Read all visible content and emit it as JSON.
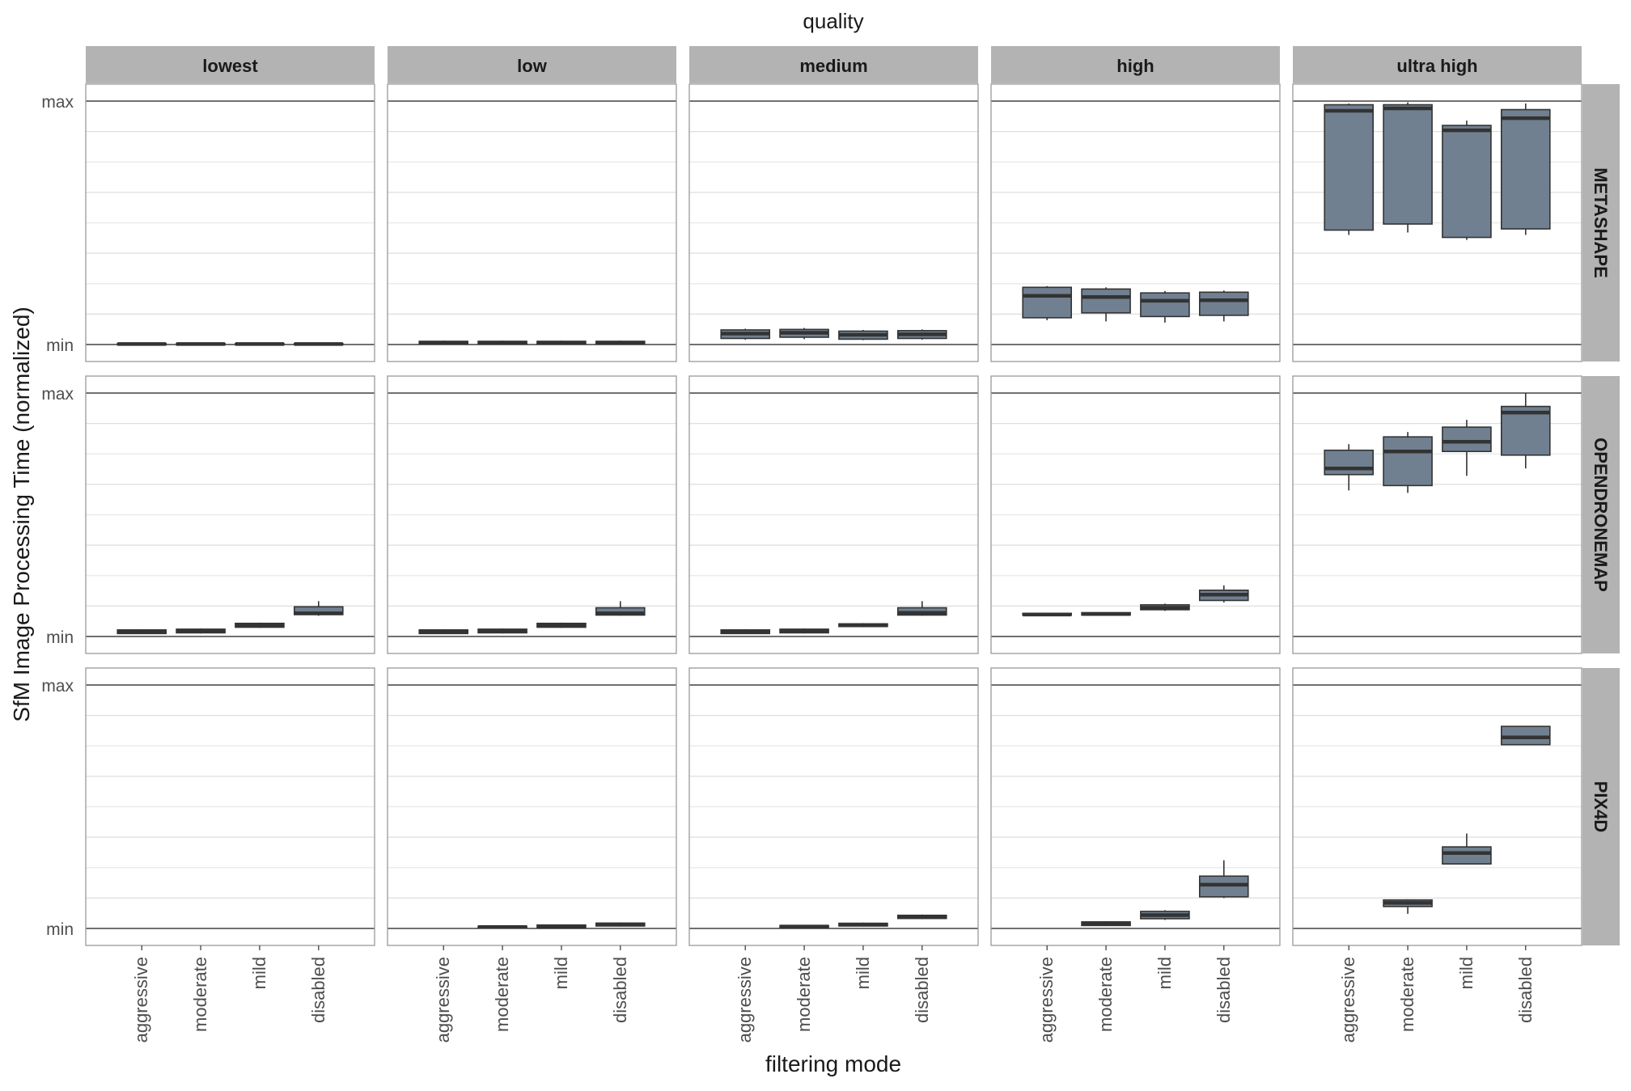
{
  "chart_data": {
    "type": "boxplot",
    "title": "quality",
    "xlabel": "filtering mode",
    "ylabel": "SfM Image Processing Time (normalized)",
    "y_tick_labels": [
      "min",
      "max"
    ],
    "ylim": [
      0,
      1
    ],
    "grid": true,
    "columns": [
      "lowest",
      "low",
      "medium",
      "high",
      "ultra high"
    ],
    "rows": [
      "METASHAPE",
      "OPENDRONEMAP",
      "PIX4D"
    ],
    "categories": [
      "aggressive",
      "moderate",
      "mild",
      "disabled"
    ],
    "colors": {
      "box_fill": "#708090",
      "strip_fill": "#b3b3b3",
      "panel_border": "#999999"
    },
    "panels": [
      {
        "row": "METASHAPE",
        "col": "lowest",
        "boxes": [
          {
            "category": "aggressive",
            "min": 0.0,
            "q1": 0.0,
            "median": 0.002,
            "q3": 0.004,
            "max": 0.006
          },
          {
            "category": "moderate",
            "min": 0.0,
            "q1": 0.0,
            "median": 0.002,
            "q3": 0.004,
            "max": 0.006
          },
          {
            "category": "mild",
            "min": 0.0,
            "q1": 0.0,
            "median": 0.002,
            "q3": 0.004,
            "max": 0.006
          },
          {
            "category": "disabled",
            "min": 0.0,
            "q1": 0.0,
            "median": 0.002,
            "q3": 0.004,
            "max": 0.006
          }
        ]
      },
      {
        "row": "METASHAPE",
        "col": "low",
        "boxes": [
          {
            "category": "aggressive",
            "min": 0.002,
            "q1": 0.003,
            "median": 0.008,
            "q3": 0.013,
            "max": 0.016
          },
          {
            "category": "moderate",
            "min": 0.002,
            "q1": 0.003,
            "median": 0.008,
            "q3": 0.013,
            "max": 0.016
          },
          {
            "category": "mild",
            "min": 0.002,
            "q1": 0.003,
            "median": 0.008,
            "q3": 0.013,
            "max": 0.016
          },
          {
            "category": "disabled",
            "min": 0.002,
            "q1": 0.003,
            "median": 0.008,
            "q3": 0.013,
            "max": 0.016
          }
        ]
      },
      {
        "row": "METASHAPE",
        "col": "medium",
        "boxes": [
          {
            "category": "aggressive",
            "min": 0.02,
            "q1": 0.025,
            "median": 0.045,
            "q3": 0.06,
            "max": 0.065
          },
          {
            "category": "moderate",
            "min": 0.022,
            "q1": 0.03,
            "median": 0.048,
            "q3": 0.062,
            "max": 0.068
          },
          {
            "category": "mild",
            "min": 0.018,
            "q1": 0.022,
            "median": 0.04,
            "q3": 0.055,
            "max": 0.06
          },
          {
            "category": "disabled",
            "min": 0.02,
            "q1": 0.025,
            "median": 0.042,
            "q3": 0.057,
            "max": 0.062
          }
        ]
      },
      {
        "row": "METASHAPE",
        "col": "high",
        "boxes": [
          {
            "category": "aggressive",
            "min": 0.1,
            "q1": 0.11,
            "median": 0.2,
            "q3": 0.235,
            "max": 0.24
          },
          {
            "category": "moderate",
            "min": 0.095,
            "q1": 0.13,
            "median": 0.195,
            "q3": 0.228,
            "max": 0.235
          },
          {
            "category": "mild",
            "min": 0.09,
            "q1": 0.115,
            "median": 0.18,
            "q3": 0.212,
            "max": 0.22
          },
          {
            "category": "disabled",
            "min": 0.095,
            "q1": 0.12,
            "median": 0.182,
            "q3": 0.215,
            "max": 0.222
          }
        ]
      },
      {
        "row": "METASHAPE",
        "col": "ultra high",
        "boxes": [
          {
            "category": "aggressive",
            "min": 0.45,
            "q1": 0.47,
            "median": 0.96,
            "q3": 0.985,
            "max": 0.99
          },
          {
            "category": "moderate",
            "min": 0.46,
            "q1": 0.495,
            "median": 0.97,
            "q3": 0.985,
            "max": 0.995
          },
          {
            "category": "mild",
            "min": 0.43,
            "q1": 0.44,
            "median": 0.88,
            "q3": 0.9,
            "max": 0.92
          },
          {
            "category": "disabled",
            "min": 0.45,
            "q1": 0.475,
            "median": 0.93,
            "q3": 0.965,
            "max": 0.99
          }
        ]
      },
      {
        "row": "OPENDRONEMAP",
        "col": "lowest",
        "boxes": [
          {
            "category": "aggressive",
            "min": 0.01,
            "q1": 0.012,
            "median": 0.02,
            "q3": 0.027,
            "max": 0.03
          },
          {
            "category": "moderate",
            "min": 0.012,
            "q1": 0.015,
            "median": 0.024,
            "q3": 0.03,
            "max": 0.033
          },
          {
            "category": "mild",
            "min": 0.035,
            "q1": 0.038,
            "median": 0.047,
            "q3": 0.054,
            "max": 0.057
          },
          {
            "category": "disabled",
            "min": 0.085,
            "q1": 0.09,
            "median": 0.095,
            "q3": 0.122,
            "max": 0.145
          }
        ]
      },
      {
        "row": "OPENDRONEMAP",
        "col": "low",
        "boxes": [
          {
            "category": "aggressive",
            "min": 0.01,
            "q1": 0.012,
            "median": 0.02,
            "q3": 0.027,
            "max": 0.03
          },
          {
            "category": "moderate",
            "min": 0.012,
            "q1": 0.015,
            "median": 0.024,
            "q3": 0.03,
            "max": 0.033
          },
          {
            "category": "mild",
            "min": 0.035,
            "q1": 0.038,
            "median": 0.047,
            "q3": 0.054,
            "max": 0.057
          },
          {
            "category": "disabled",
            "min": 0.085,
            "q1": 0.088,
            "median": 0.095,
            "q3": 0.118,
            "max": 0.145
          }
        ]
      },
      {
        "row": "OPENDRONEMAP",
        "col": "medium",
        "boxes": [
          {
            "category": "aggressive",
            "min": 0.01,
            "q1": 0.012,
            "median": 0.02,
            "q3": 0.027,
            "max": 0.03
          },
          {
            "category": "moderate",
            "min": 0.012,
            "q1": 0.015,
            "median": 0.024,
            "q3": 0.03,
            "max": 0.033
          },
          {
            "category": "mild",
            "min": 0.038,
            "q1": 0.041,
            "median": 0.046,
            "q3": 0.052,
            "max": 0.055
          },
          {
            "category": "disabled",
            "min": 0.085,
            "q1": 0.088,
            "median": 0.097,
            "q3": 0.118,
            "max": 0.145
          }
        ]
      },
      {
        "row": "OPENDRONEMAP",
        "col": "high",
        "boxes": [
          {
            "category": "aggressive",
            "min": 0.085,
            "q1": 0.088,
            "median": 0.09,
            "q3": 0.095,
            "max": 0.098
          },
          {
            "category": "moderate",
            "min": 0.085,
            "q1": 0.088,
            "median": 0.092,
            "q3": 0.098,
            "max": 0.1
          },
          {
            "category": "mild",
            "min": 0.105,
            "q1": 0.11,
            "median": 0.118,
            "q3": 0.13,
            "max": 0.135
          },
          {
            "category": "disabled",
            "min": 0.14,
            "q1": 0.148,
            "median": 0.172,
            "q3": 0.19,
            "max": 0.21
          }
        ]
      },
      {
        "row": "OPENDRONEMAP",
        "col": "ultra high",
        "boxes": [
          {
            "category": "aggressive",
            "min": 0.6,
            "q1": 0.665,
            "median": 0.69,
            "q3": 0.765,
            "max": 0.79
          },
          {
            "category": "moderate",
            "min": 0.59,
            "q1": 0.62,
            "median": 0.76,
            "q3": 0.82,
            "max": 0.84
          },
          {
            "category": "mild",
            "min": 0.66,
            "q1": 0.76,
            "median": 0.8,
            "q3": 0.86,
            "max": 0.89
          },
          {
            "category": "disabled",
            "min": 0.69,
            "q1": 0.745,
            "median": 0.92,
            "q3": 0.945,
            "max": 1.0
          }
        ]
      },
      {
        "row": "PIX4D",
        "col": "lowest",
        "boxes": []
      },
      {
        "row": "PIX4D",
        "col": "low",
        "boxes": [
          {
            "category": "moderate",
            "min": 0.002,
            "q1": 0.003,
            "median": 0.006,
            "q3": 0.009,
            "max": 0.01
          },
          {
            "category": "mild",
            "min": 0.003,
            "q1": 0.005,
            "median": 0.009,
            "q3": 0.014,
            "max": 0.016
          },
          {
            "category": "disabled",
            "min": 0.008,
            "q1": 0.01,
            "median": 0.016,
            "q3": 0.022,
            "max": 0.025
          }
        ]
      },
      {
        "row": "PIX4D",
        "col": "medium",
        "boxes": [
          {
            "category": "moderate",
            "min": 0.002,
            "q1": 0.003,
            "median": 0.008,
            "q3": 0.012,
            "max": 0.015
          },
          {
            "category": "mild",
            "min": 0.008,
            "q1": 0.01,
            "median": 0.016,
            "q3": 0.021,
            "max": 0.024
          },
          {
            "category": "disabled",
            "min": 0.038,
            "q1": 0.041,
            "median": 0.047,
            "q3": 0.054,
            "max": 0.057
          }
        ]
      },
      {
        "row": "PIX4D",
        "col": "high",
        "boxes": [
          {
            "category": "moderate",
            "min": 0.01,
            "q1": 0.012,
            "median": 0.02,
            "q3": 0.027,
            "max": 0.03
          },
          {
            "category": "mild",
            "min": 0.035,
            "q1": 0.04,
            "median": 0.055,
            "q3": 0.07,
            "max": 0.075
          },
          {
            "category": "disabled",
            "min": 0.125,
            "q1": 0.13,
            "median": 0.18,
            "q3": 0.215,
            "max": 0.28
          }
        ]
      },
      {
        "row": "PIX4D",
        "col": "ultra high",
        "boxes": [
          {
            "category": "moderate",
            "min": 0.06,
            "q1": 0.09,
            "median": 0.105,
            "q3": 0.117,
            "max": 0.12
          },
          {
            "category": "mild",
            "min": 0.265,
            "q1": 0.265,
            "median": 0.31,
            "q3": 0.335,
            "max": 0.39
          },
          {
            "category": "disabled",
            "min": 0.755,
            "q1": 0.755,
            "median": 0.785,
            "q3": 0.83,
            "max": 0.83
          }
        ]
      }
    ]
  }
}
